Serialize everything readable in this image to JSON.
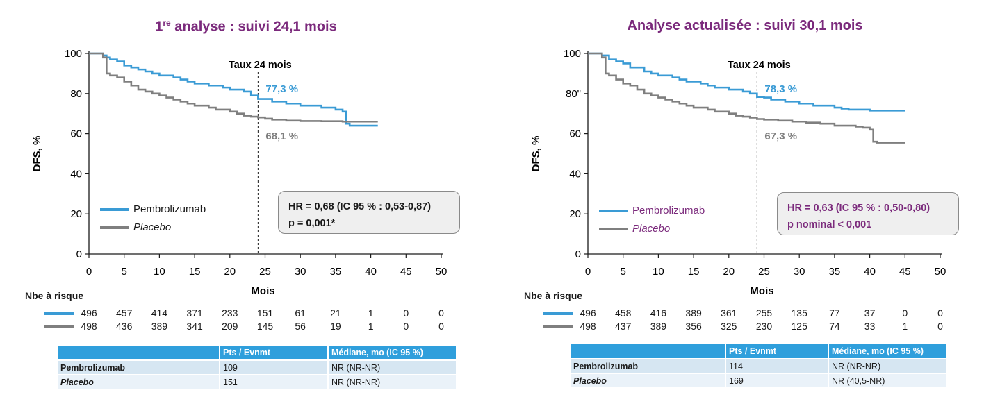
{
  "panels": [
    {
      "title_main": "1",
      "title_sup": "re",
      "title_rest": " analyse : suivi 24,1 mois",
      "hr_line1": "HR = 0,68 (IC 95 % : 0,53-0,87)",
      "hr_line2": "p = 0,001*",
      "hr_color": "#1a1a1a",
      "legend_text_color": "#1a1a1a",
      "table": {
        "headers": [
          "",
          "Pts / Evnmt",
          "Médiane, mo (IC 95 %)"
        ],
        "rows": [
          {
            "arm": "Pembrolizumab",
            "italic": false,
            "events": "109",
            "median": "NR (NR-NR)"
          },
          {
            "arm": "Placebo",
            "italic": true,
            "events": "151",
            "median": "NR (NR-NR)"
          }
        ]
      },
      "risk": {
        "title": "Nbe à risque",
        "pembro": [
          "496",
          "457",
          "414",
          "371",
          "233",
          "151",
          "61",
          "21",
          "1",
          "0",
          "0"
        ],
        "placebo": [
          "498",
          "436",
          "389",
          "341",
          "209",
          "145",
          "56",
          "19",
          "1",
          "0",
          "0"
        ]
      }
    },
    {
      "title_main": "Analyse actualisée : suivi 30,1 mois",
      "title_sup": "",
      "title_rest": "",
      "hr_line1": "HR = 0,63 (IC 95 % : 0,50-0,80)",
      "hr_line2": "p nominal < 0,001",
      "hr_color": "#7b2a7c",
      "legend_text_color": "#7b2a7c",
      "table": {
        "headers": [
          "",
          "Pts / Evnmt",
          "Médiane, mo (IC 95 %)"
        ],
        "rows": [
          {
            "arm": "Pembrolizumab",
            "italic": false,
            "events": "114",
            "median": "NR (NR-NR)"
          },
          {
            "arm": "Placebo",
            "italic": true,
            "events": "169",
            "median": "NR (40,5-NR)"
          }
        ]
      },
      "risk": {
        "title": "Nbe à risque",
        "pembro": [
          "496",
          "458",
          "416",
          "389",
          "361",
          "255",
          "135",
          "77",
          "37",
          "0",
          "0"
        ],
        "placebo": [
          "498",
          "437",
          "389",
          "356",
          "325",
          "230",
          "125",
          "74",
          "33",
          "1",
          "0"
        ]
      }
    }
  ],
  "colors": {
    "pembro": "#3a9bd5",
    "placebo": "#7f7f7f",
    "axis": "#1a1a1a"
  },
  "chart_data": [
    {
      "type": "line",
      "title": "1re analyse : suivi 24,1 mois",
      "xlabel": "Mois",
      "ylabel": "DFS, %",
      "xlim": [
        0,
        50
      ],
      "ylim": [
        0,
        100
      ],
      "xticks": [
        "0",
        "5",
        "10",
        "15",
        "20",
        "25",
        "30",
        "35",
        "40",
        "45",
        "50"
      ],
      "yticks": [
        "0",
        "20",
        "40",
        "60",
        "80",
        "100"
      ],
      "marker_x": 24,
      "marker_label": "Taux 24 mois",
      "legend_placement": "bottom-left",
      "series": [
        {
          "name": "Pembrolizumab",
          "landmark_label": "77,3 %",
          "points": [
            [
              0,
              100
            ],
            [
              1,
              100
            ],
            [
              2,
              99
            ],
            [
              2.5,
              98
            ],
            [
              3,
              97
            ],
            [
              4,
              96
            ],
            [
              5,
              94
            ],
            [
              6,
              93
            ],
            [
              7,
              92
            ],
            [
              8,
              91
            ],
            [
              9,
              90
            ],
            [
              10,
              89
            ],
            [
              12,
              88
            ],
            [
              13,
              87
            ],
            [
              14,
              86
            ],
            [
              15,
              85
            ],
            [
              17,
              84
            ],
            [
              19,
              83
            ],
            [
              20,
              82
            ],
            [
              22,
              81
            ],
            [
              23,
              79
            ],
            [
              24,
              77.3
            ],
            [
              26,
              76
            ],
            [
              28,
              75
            ],
            [
              30,
              74
            ],
            [
              33,
              73
            ],
            [
              35,
              72
            ],
            [
              36,
              71
            ],
            [
              36.5,
              65
            ],
            [
              37,
              64
            ],
            [
              41,
              64
            ]
          ]
        },
        {
          "name": "Placebo",
          "landmark_label": "68,1 %",
          "points": [
            [
              0,
              100
            ],
            [
              1,
              100
            ],
            [
              2,
              98
            ],
            [
              2.5,
              90
            ],
            [
              3,
              89
            ],
            [
              4,
              88
            ],
            [
              5,
              86
            ],
            [
              6,
              84
            ],
            [
              7,
              82
            ],
            [
              8,
              81
            ],
            [
              9,
              80
            ],
            [
              10,
              79
            ],
            [
              11,
              78
            ],
            [
              12,
              77
            ],
            [
              13,
              76
            ],
            [
              14,
              75
            ],
            [
              15,
              74
            ],
            [
              17,
              73
            ],
            [
              18,
              72
            ],
            [
              20,
              71
            ],
            [
              21,
              70
            ],
            [
              22,
              69
            ],
            [
              23,
              68.5
            ],
            [
              24,
              68.1
            ],
            [
              25,
              67.5
            ],
            [
              26,
              67
            ],
            [
              28,
              66.5
            ],
            [
              30,
              66.3
            ],
            [
              33,
              66.2
            ],
            [
              36,
              66
            ],
            [
              41,
              66
            ]
          ]
        }
      ]
    },
    {
      "type": "line",
      "title": "Analyse actualisée : suivi 30,1 mois",
      "xlabel": "Mois",
      "ylabel": "DFS, %",
      "xlim": [
        0,
        50
      ],
      "ylim": [
        0,
        100
      ],
      "xticks": [
        "0",
        "5",
        "10",
        "15",
        "20",
        "25",
        "30",
        "35",
        "40",
        "45",
        "50"
      ],
      "yticks": [
        "0",
        "20",
        "40",
        "60",
        "80\"",
        "100"
      ],
      "marker_x": 24,
      "marker_label": "Taux 24 mois",
      "legend_placement": "bottom-left",
      "series": [
        {
          "name": "Pembrolizumab",
          "landmark_label": "78,3 %",
          "points": [
            [
              0,
              100
            ],
            [
              1,
              100
            ],
            [
              2,
              99
            ],
            [
              3,
              97
            ],
            [
              4,
              96
            ],
            [
              5,
              95
            ],
            [
              6,
              93
            ],
            [
              8,
              91
            ],
            [
              9,
              90
            ],
            [
              10,
              89
            ],
            [
              12,
              88
            ],
            [
              13,
              87
            ],
            [
              14,
              86
            ],
            [
              16,
              85
            ],
            [
              17,
              84
            ],
            [
              18,
              83
            ],
            [
              20,
              82
            ],
            [
              22,
              81
            ],
            [
              23,
              80
            ],
            [
              24,
              78.3
            ],
            [
              25,
              78
            ],
            [
              26,
              77
            ],
            [
              28,
              76
            ],
            [
              30,
              75
            ],
            [
              32,
              74
            ],
            [
              35,
              73
            ],
            [
              36,
              72.5
            ],
            [
              37,
              72
            ],
            [
              40,
              71.5
            ],
            [
              45,
              71.5
            ]
          ]
        },
        {
          "name": "Placebo",
          "landmark_label": "67,3 %",
          "points": [
            [
              0,
              100
            ],
            [
              1,
              100
            ],
            [
              2,
              98
            ],
            [
              2.5,
              90
            ],
            [
              3,
              89
            ],
            [
              4,
              87
            ],
            [
              5,
              85
            ],
            [
              6,
              84
            ],
            [
              7,
              82
            ],
            [
              8,
              80
            ],
            [
              9,
              79
            ],
            [
              10,
              78
            ],
            [
              11,
              77
            ],
            [
              12,
              76
            ],
            [
              13,
              75
            ],
            [
              14,
              74
            ],
            [
              15,
              73
            ],
            [
              17,
              72
            ],
            [
              18,
              71
            ],
            [
              20,
              70
            ],
            [
              21,
              69
            ],
            [
              22,
              68.5
            ],
            [
              23,
              68
            ],
            [
              24,
              67.3
            ],
            [
              25,
              67
            ],
            [
              27,
              66.5
            ],
            [
              29,
              66
            ],
            [
              31,
              65.5
            ],
            [
              33,
              65
            ],
            [
              35,
              64
            ],
            [
              38,
              63.5
            ],
            [
              39,
              63
            ],
            [
              40,
              62
            ],
            [
              40.5,
              56
            ],
            [
              41,
              55.5
            ],
            [
              45,
              55.5
            ]
          ]
        }
      ]
    }
  ]
}
